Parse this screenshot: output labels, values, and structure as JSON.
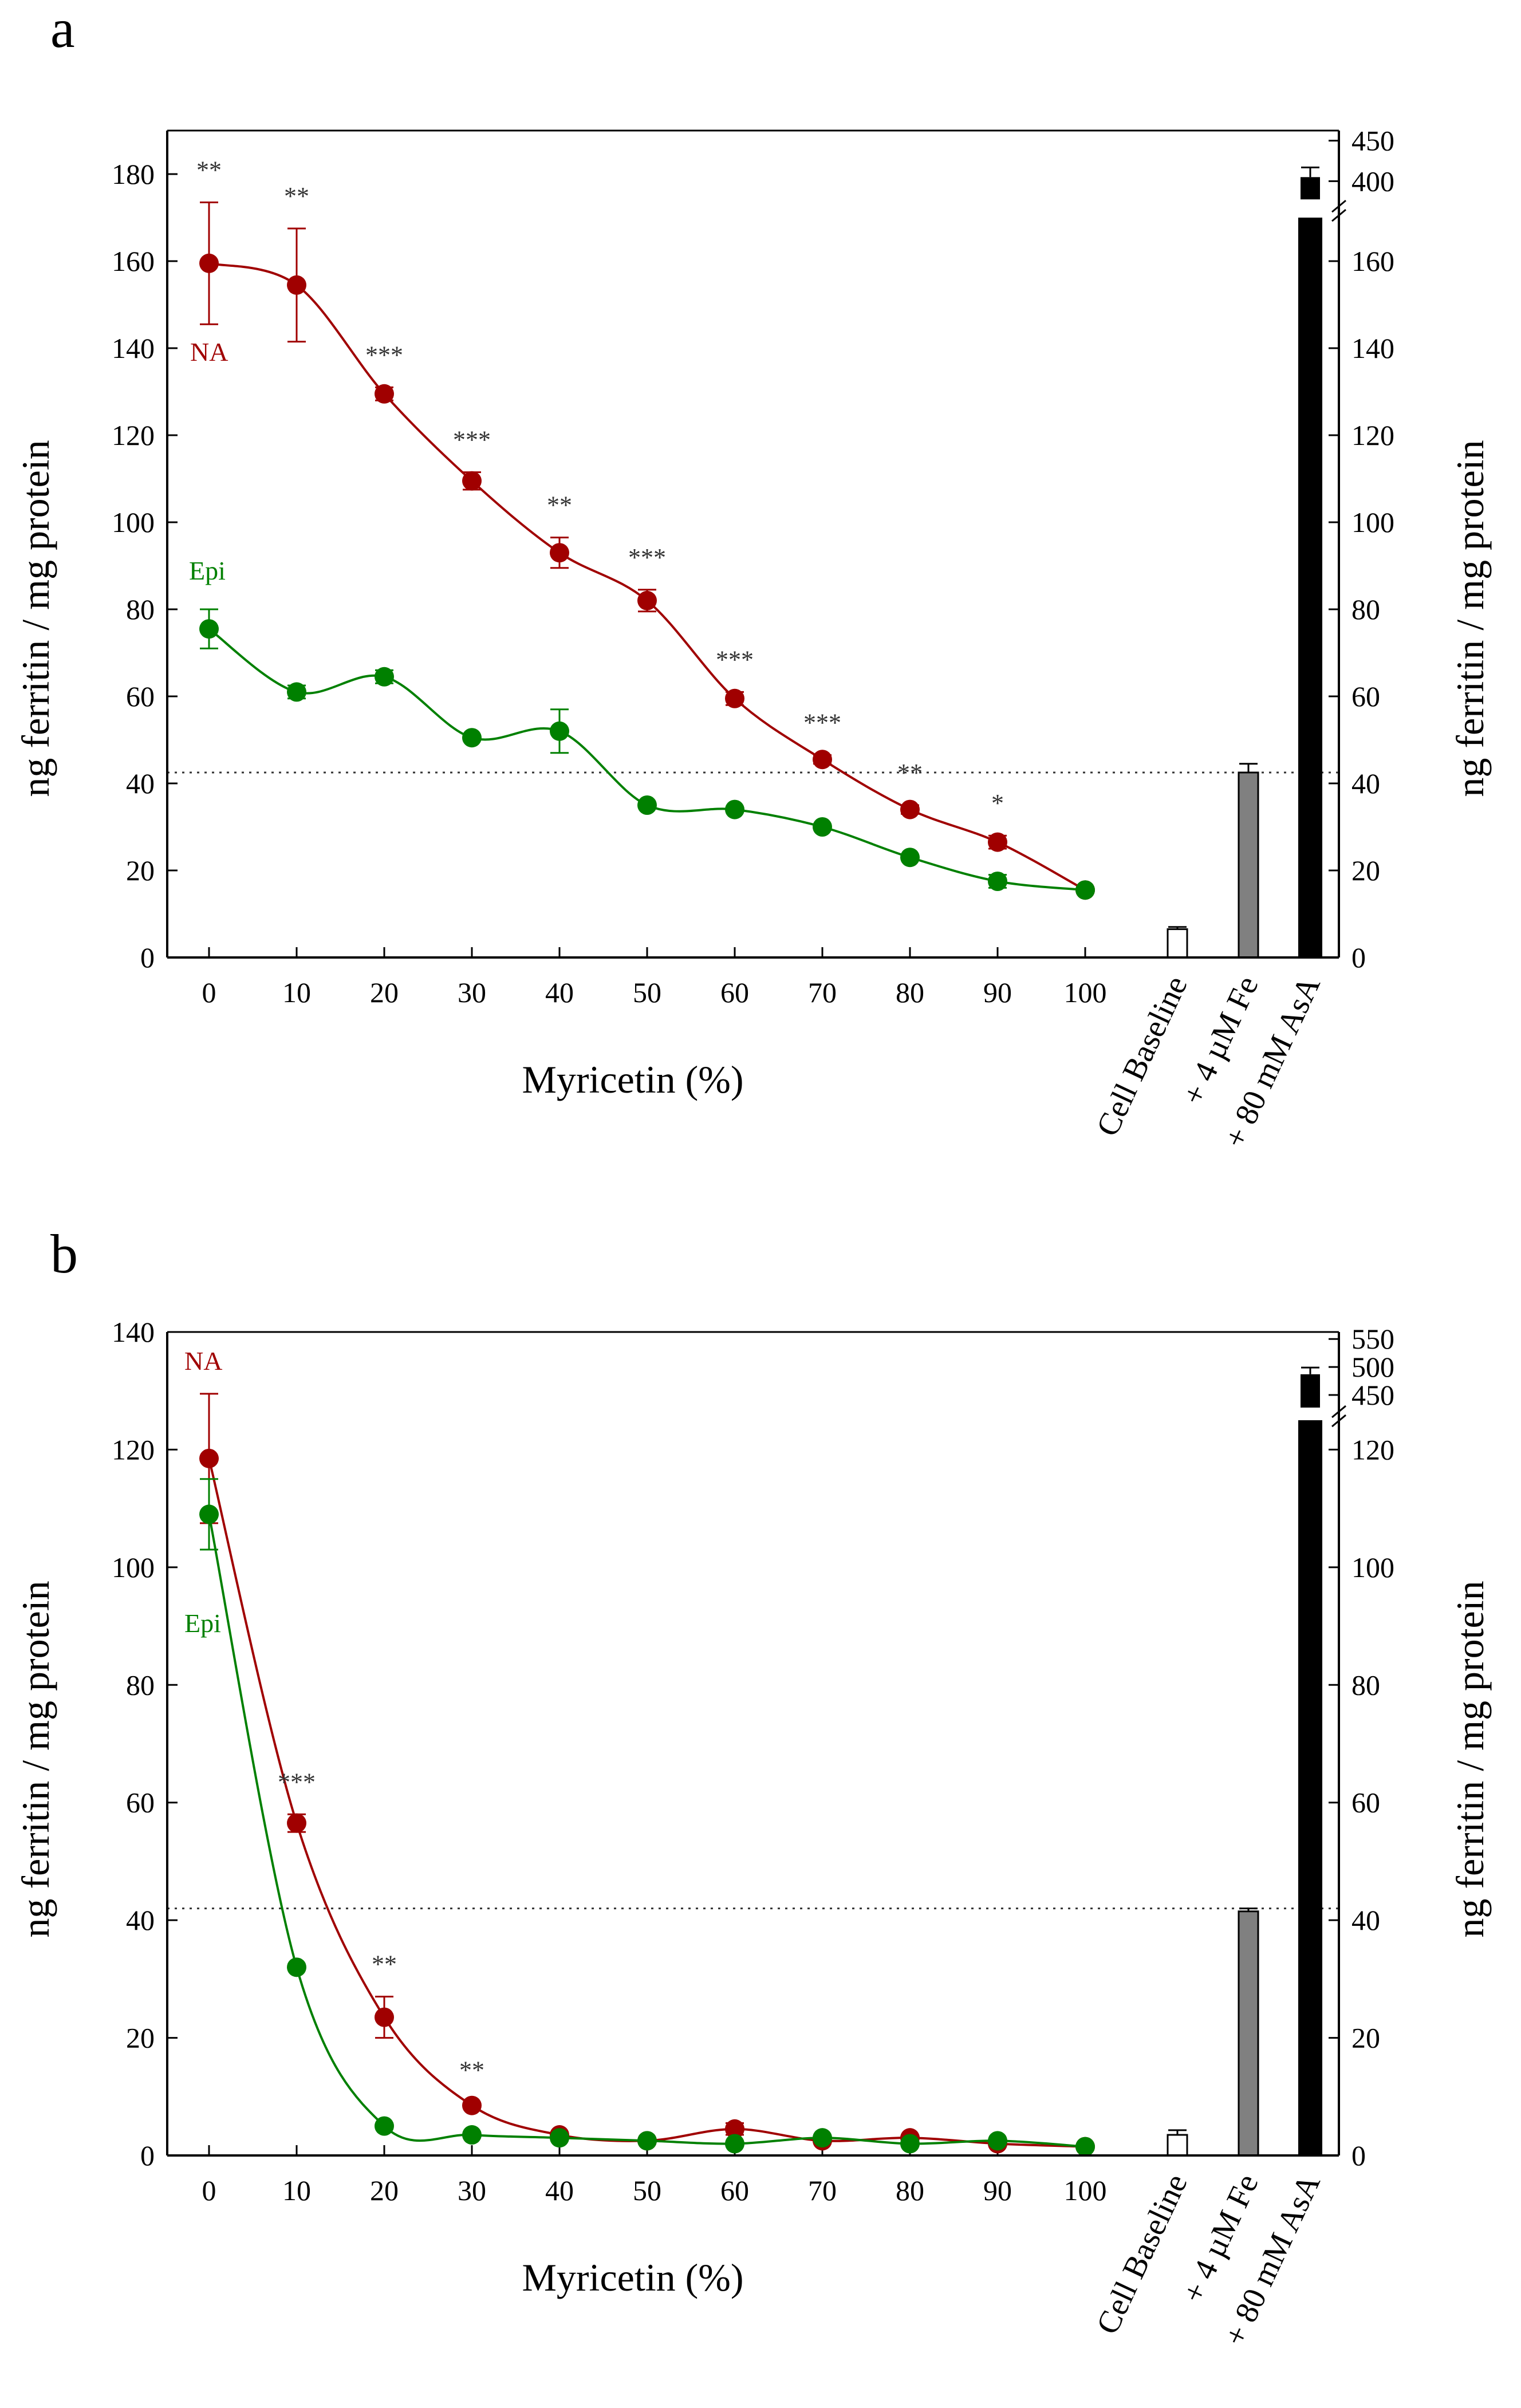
{
  "chart_data": [
    {
      "panel": "a",
      "type": "line",
      "xlabel": "Myricetin (%)",
      "ylabel": "ng ferritin / mg protein",
      "ylabel_right": "ng ferritin / mg protein",
      "x": [
        0,
        10,
        20,
        30,
        40,
        50,
        60,
        70,
        80,
        90,
        100
      ],
      "ylim": [
        0,
        190
      ],
      "yticks": [
        0,
        20,
        40,
        60,
        80,
        100,
        120,
        140,
        160,
        180
      ],
      "right_yticks": [
        0,
        20,
        40,
        60,
        80,
        100,
        120,
        140,
        160
      ],
      "right_break_ticks": [
        400,
        450
      ],
      "reference_line": 42.5,
      "series": [
        {
          "name": "NA",
          "color": "#a00000",
          "values": [
            159.5,
            154.5,
            129.5,
            109.5,
            93,
            82,
            59.5,
            45.5,
            34,
            26.5,
            15.5
          ],
          "errors": [
            14,
            13,
            1.5,
            2,
            3.5,
            2.5,
            1.5,
            1,
            1,
            1.5,
            0.5
          ],
          "significance": [
            "**",
            "**",
            "***",
            "***",
            "**",
            "***",
            "***",
            "***",
            "**",
            "*",
            ""
          ]
        },
        {
          "name": "Epi",
          "color": "#008000",
          "values": [
            75.5,
            61,
            64.5,
            50.5,
            52,
            35,
            34,
            30,
            23,
            17.5,
            15.5
          ],
          "errors": [
            4.5,
            1.5,
            1.5,
            0.5,
            5,
            0.5,
            0.5,
            0.5,
            0.5,
            1.5,
            0.5
          ],
          "significance": []
        }
      ],
      "conditions": [
        {
          "label": "Cell Baseline",
          "value": 6.5,
          "error": 0.5,
          "color": "#ffffff",
          "stroke": "#000000"
        },
        {
          "label": "+ 4 µM Fe",
          "value": 42.5,
          "error": 2,
          "color": "#808080",
          "stroke": "#000000"
        },
        {
          "label": "+ 80 mM AsA",
          "value": 405,
          "error": 12,
          "color": "#000000",
          "stroke": "#000000"
        }
      ]
    },
    {
      "panel": "b",
      "type": "line",
      "xlabel": "Myricetin (%)",
      "ylabel": "ng ferritin / mg protein",
      "ylabel_right": "ng ferritin / mg protein",
      "x": [
        0,
        10,
        20,
        30,
        40,
        50,
        60,
        70,
        80,
        90,
        100
      ],
      "ylim": [
        0,
        140
      ],
      "yticks": [
        0,
        20,
        40,
        60,
        80,
        100,
        120,
        140
      ],
      "right_yticks": [
        0,
        20,
        40,
        60,
        80,
        100,
        120
      ],
      "right_break_ticks": [
        450,
        500,
        550
      ],
      "reference_line": 42,
      "series": [
        {
          "name": "NA",
          "color": "#a00000",
          "values": [
            118.5,
            56.5,
            23.5,
            8.5,
            3.5,
            2.5,
            4.5,
            2.5,
            3,
            2,
            1.5
          ],
          "errors": [
            11,
            1.5,
            3.5,
            0.5,
            0.5,
            0.5,
            1,
            0.5,
            0.5,
            0.5,
            0.3
          ],
          "significance": [
            "",
            "***",
            "**",
            "**",
            "",
            "",
            "",
            "",
            "",
            "",
            ""
          ]
        },
        {
          "name": "Epi",
          "color": "#008000",
          "values": [
            109,
            32,
            5,
            3.5,
            3,
            2.5,
            2,
            3,
            2,
            2.5,
            1.5
          ],
          "errors": [
            6,
            0.5,
            0.5,
            0.5,
            0.5,
            0.5,
            0.5,
            0.5,
            0.5,
            0.5,
            0.3
          ],
          "significance": []
        }
      ],
      "conditions": [
        {
          "label": "Cell Baseline",
          "value": 3.5,
          "error": 0.8,
          "color": "#ffffff",
          "stroke": "#000000"
        },
        {
          "label": "+ 4 µM Fe",
          "value": 41.5,
          "error": 0.5,
          "color": "#808080",
          "stroke": "#000000"
        },
        {
          "label": "+ 80 mM AsA",
          "value": 487,
          "error": 12,
          "color": "#000000",
          "stroke": "#000000"
        }
      ]
    }
  ]
}
